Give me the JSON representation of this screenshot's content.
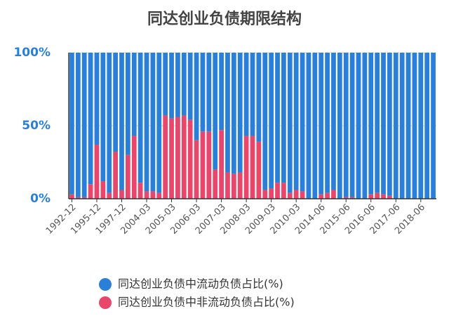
{
  "chart_data": {
    "type": "stacked_bar",
    "title": "同达创业负债期限结构",
    "categories": [
      "1992-12",
      null,
      null,
      null,
      "1995-12",
      null,
      null,
      null,
      "1997-12",
      null,
      null,
      null,
      "2004-03",
      null,
      null,
      null,
      "2005-03",
      null,
      null,
      null,
      "2006-03",
      null,
      null,
      null,
      "2007-03",
      null,
      null,
      null,
      "2008-03",
      null,
      null,
      null,
      "2009-03",
      null,
      null,
      null,
      "2010-03",
      null,
      null,
      null,
      "2014-06",
      null,
      null,
      null,
      "2015-06",
      null,
      null,
      null,
      "2016-06",
      null,
      null,
      null,
      "2017-06",
      null,
      null,
      null,
      "2018-06",
      null,
      null
    ],
    "series": [
      {
        "name": "同达创业负债中流动负债占比(%)",
        "color": "#2a80d8",
        "values": [
          97,
          99,
          99,
          90,
          63,
          88,
          96,
          68,
          94,
          70,
          57,
          89,
          95,
          95,
          96,
          43,
          45,
          44,
          43,
          46,
          60,
          54,
          54,
          80,
          53,
          82,
          83,
          82,
          57,
          57,
          61,
          94,
          93,
          89,
          89,
          96,
          94,
          95,
          100,
          100,
          97,
          96,
          94,
          100,
          99,
          99,
          100,
          100,
          97,
          96,
          97,
          98,
          100,
          100,
          100,
          100,
          100,
          100,
          100
        ]
      },
      {
        "name": "同达创业负债中非流动负债占比(%)",
        "color": "#e8476b",
        "values": [
          3,
          1,
          1,
          10,
          37,
          12,
          4,
          32,
          6,
          30,
          43,
          11,
          5,
          5,
          4,
          57,
          55,
          56,
          57,
          54,
          40,
          46,
          46,
          20,
          47,
          18,
          17,
          18,
          43,
          43,
          39,
          6,
          7,
          11,
          11,
          4,
          6,
          5,
          0,
          0,
          3,
          4,
          6,
          0,
          1,
          1,
          0,
          0,
          3,
          4,
          3,
          2,
          0,
          0,
          0,
          0,
          0,
          0,
          0
        ]
      }
    ],
    "ylim": [
      0,
      100
    ],
    "yticks": [
      {
        "value": 0,
        "label": "0%"
      },
      {
        "value": 50,
        "label": "50%"
      },
      {
        "value": 100,
        "label": "100%"
      }
    ],
    "grid": true
  }
}
